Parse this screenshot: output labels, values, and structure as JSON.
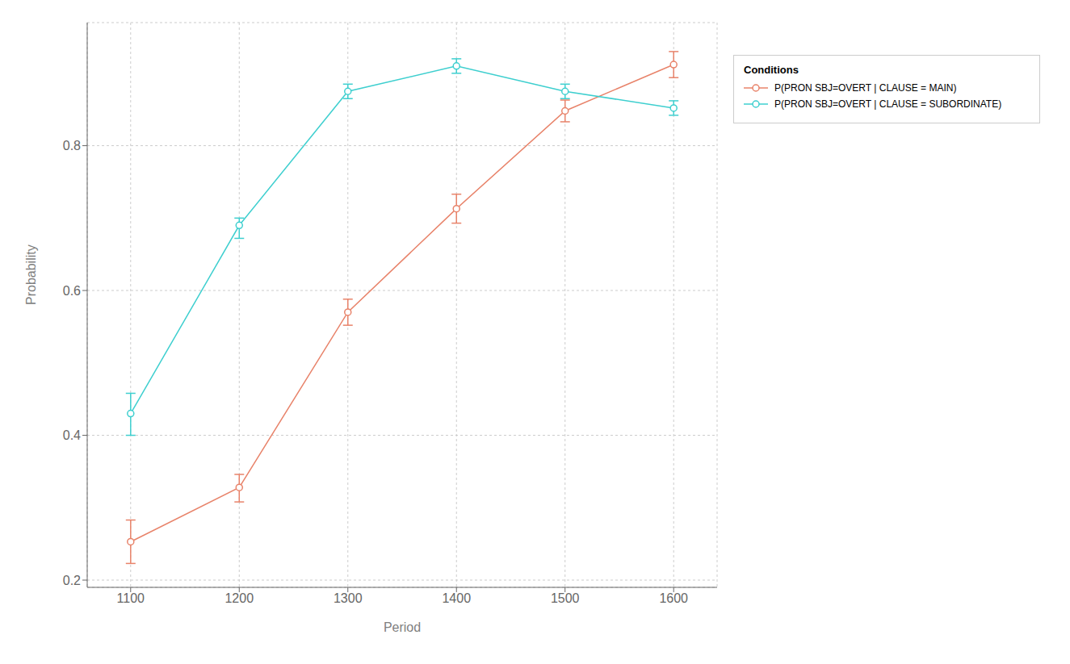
{
  "chart_data": {
    "type": "line",
    "xlabel": "Period",
    "ylabel": "Probability",
    "legend_title": "Conditions",
    "x": [
      1100,
      1200,
      1300,
      1400,
      1500,
      1600
    ],
    "series": [
      {
        "name": "P(PRON SBJ=OVERT | CLAUSE = MAIN)",
        "color": "#E8836A",
        "marker": "o",
        "values": [
          0.253,
          0.328,
          0.57,
          0.713,
          0.848,
          0.912
        ],
        "yerr_low": [
          0.03,
          0.02,
          0.018,
          0.02,
          0.015,
          0.018
        ],
        "yerr_high": [
          0.03,
          0.018,
          0.018,
          0.02,
          0.015,
          0.018
        ]
      },
      {
        "name": "P(PRON SBJ=OVERT | CLAUSE = SUBORDINATE)",
        "color": "#3ECFCF",
        "marker": "o",
        "values": [
          0.43,
          0.69,
          0.875,
          0.91,
          0.875,
          0.852
        ],
        "yerr_low": [
          0.03,
          0.018,
          0.01,
          0.01,
          0.01,
          0.01
        ],
        "yerr_high": [
          0.028,
          0.01,
          0.01,
          0.01,
          0.01,
          0.01
        ]
      }
    ],
    "xlim": [
      1060,
      1640
    ],
    "xticks": [
      1100,
      1200,
      1300,
      1400,
      1500,
      1600
    ],
    "ylim": [
      0.19,
      0.97
    ],
    "yticks": [
      0.2,
      0.4,
      0.6,
      0.8
    ],
    "grid": true,
    "legend": "right"
  }
}
